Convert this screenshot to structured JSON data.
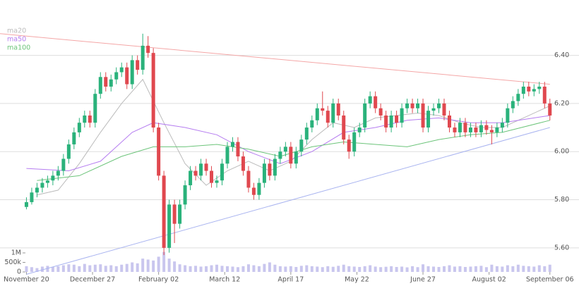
{
  "chart_data": {
    "type": "candlestick",
    "legend": [
      {
        "name": "ma20",
        "color": "#bbbbbb"
      },
      {
        "name": "ma50",
        "color": "#b57cf0"
      },
      {
        "name": "ma100",
        "color": "#6cc47a"
      }
    ],
    "up_color": "#2ab27b",
    "down_color": "#e0484f",
    "volume_color": "#c9c6ee",
    "xlim": [
      -5,
      100.5
    ],
    "xticks": [
      {
        "value": 0,
        "label": "November 20"
      },
      {
        "value": 12.5,
        "label": "December 27"
      },
      {
        "value": 25,
        "label": "February 02"
      },
      {
        "value": 37.5,
        "label": "March 12"
      },
      {
        "value": 50,
        "label": "April 17"
      },
      {
        "value": 62.5,
        "label": "May 22"
      },
      {
        "value": 75,
        "label": "June 27"
      },
      {
        "value": 87.5,
        "label": "August 02"
      },
      {
        "value": 99,
        "label": "September 06"
      }
    ],
    "ylim": [
      5.5,
      6.63
    ],
    "yticks": [
      {
        "value": 5.6,
        "label": "5.60"
      },
      {
        "value": 5.8,
        "label": "5.80"
      },
      {
        "value": 6.0,
        "label": "6.00"
      },
      {
        "value": 6.2,
        "label": "6.20"
      },
      {
        "value": 6.4,
        "label": "6.40"
      }
    ],
    "grid": true,
    "vlim": [
      0,
      1500000
    ],
    "vticks": [
      0,
      {
        "value": 500000,
        "label": "500k"
      },
      {
        "value": 1000000,
        "label": "1M"
      }
    ],
    "candles": [
      [
        5.77,
        5.81,
        5.76,
        5.79
      ],
      [
        5.79,
        5.85,
        5.78,
        5.83
      ],
      [
        5.83,
        5.87,
        5.81,
        5.85
      ],
      [
        5.85,
        5.89,
        5.83,
        5.87
      ],
      [
        5.87,
        5.9,
        5.85,
        5.88
      ],
      [
        5.88,
        5.92,
        5.86,
        5.9
      ],
      [
        5.9,
        5.94,
        5.88,
        5.92
      ],
      [
        5.92,
        5.99,
        5.9,
        5.97
      ],
      [
        5.97,
        6.05,
        5.95,
        6.03
      ],
      [
        6.03,
        6.1,
        6.01,
        6.08
      ],
      [
        6.08,
        6.14,
        6.06,
        6.12
      ],
      [
        6.12,
        6.17,
        6.1,
        6.15
      ],
      [
        6.15,
        6.17,
        6.1,
        6.12
      ],
      [
        6.12,
        6.26,
        6.1,
        6.24
      ],
      [
        6.24,
        6.33,
        6.22,
        6.31
      ],
      [
        6.31,
        6.33,
        6.25,
        6.27
      ],
      [
        6.27,
        6.32,
        6.25,
        6.3
      ],
      [
        6.3,
        6.35,
        6.28,
        6.33
      ],
      [
        6.33,
        6.37,
        6.31,
        6.35
      ],
      [
        6.35,
        6.37,
        6.26,
        6.28
      ],
      [
        6.28,
        6.4,
        6.26,
        6.38
      ],
      [
        6.38,
        6.4,
        6.32,
        6.34
      ],
      [
        6.34,
        6.49,
        6.32,
        6.44
      ],
      [
        6.44,
        6.48,
        6.39,
        6.41
      ],
      [
        6.41,
        6.43,
        6.08,
        6.1
      ],
      [
        6.1,
        6.12,
        5.88,
        5.9
      ],
      [
        5.9,
        5.92,
        5.57,
        5.6
      ],
      [
        5.6,
        5.8,
        5.58,
        5.78
      ],
      [
        5.78,
        5.8,
        5.62,
        5.7
      ],
      [
        5.7,
        5.8,
        5.68,
        5.78
      ],
      [
        5.78,
        5.88,
        5.76,
        5.86
      ],
      [
        5.86,
        5.94,
        5.84,
        5.92
      ],
      [
        5.92,
        5.94,
        5.88,
        5.9
      ],
      [
        5.9,
        5.97,
        5.88,
        5.95
      ],
      [
        5.95,
        5.97,
        5.9,
        5.92
      ],
      [
        5.92,
        5.94,
        5.85,
        5.87
      ],
      [
        5.87,
        5.9,
        5.85,
        5.88
      ],
      [
        5.88,
        5.97,
        5.86,
        5.95
      ],
      [
        5.95,
        6.04,
        5.93,
        6.02
      ],
      [
        6.02,
        6.06,
        6.0,
        6.04
      ],
      [
        6.04,
        6.06,
        5.96,
        5.98
      ],
      [
        5.98,
        6.0,
        5.9,
        5.92
      ],
      [
        5.92,
        5.94,
        5.83,
        5.85
      ],
      [
        5.85,
        5.87,
        5.8,
        5.82
      ],
      [
        5.82,
        5.89,
        5.8,
        5.87
      ],
      [
        5.87,
        5.97,
        5.85,
        5.95
      ],
      [
        5.95,
        5.97,
        5.88,
        5.9
      ],
      [
        5.9,
        5.99,
        5.88,
        5.97
      ],
      [
        5.97,
        6.02,
        5.95,
        6.0
      ],
      [
        6.0,
        6.04,
        5.98,
        6.02
      ],
      [
        6.02,
        6.04,
        5.93,
        5.95
      ],
      [
        5.95,
        6.02,
        5.93,
        6.0
      ],
      [
        6.0,
        6.07,
        5.98,
        6.05
      ],
      [
        6.05,
        6.12,
        6.03,
        6.1
      ],
      [
        6.1,
        6.15,
        6.08,
        6.13
      ],
      [
        6.13,
        6.2,
        6.11,
        6.18
      ],
      [
        6.18,
        6.25,
        6.15,
        6.17
      ],
      [
        6.17,
        6.19,
        6.1,
        6.12
      ],
      [
        6.12,
        6.22,
        6.1,
        6.2
      ],
      [
        6.2,
        6.22,
        6.13,
        6.15
      ],
      [
        6.15,
        6.17,
        6.03,
        6.05
      ],
      [
        6.05,
        6.07,
        5.97,
        6.0
      ],
      [
        6.0,
        6.1,
        5.98,
        6.08
      ],
      [
        6.08,
        6.12,
        6.06,
        6.1
      ],
      [
        6.1,
        6.22,
        6.08,
        6.2
      ],
      [
        6.2,
        6.25,
        6.18,
        6.23
      ],
      [
        6.23,
        6.25,
        6.16,
        6.18
      ],
      [
        6.18,
        6.2,
        6.13,
        6.15
      ],
      [
        6.15,
        6.17,
        6.08,
        6.1
      ],
      [
        6.1,
        6.17,
        6.08,
        6.15
      ],
      [
        6.15,
        6.17,
        6.1,
        6.12
      ],
      [
        6.12,
        6.2,
        6.1,
        6.18
      ],
      [
        6.18,
        6.22,
        6.16,
        6.2
      ],
      [
        6.2,
        6.22,
        6.16,
        6.18
      ],
      [
        6.18,
        6.22,
        6.16,
        6.2
      ],
      [
        6.2,
        6.22,
        6.08,
        6.1
      ],
      [
        6.1,
        6.19,
        6.08,
        6.17
      ],
      [
        6.17,
        6.2,
        6.15,
        6.18
      ],
      [
        6.18,
        6.22,
        6.16,
        6.2
      ],
      [
        6.2,
        6.22,
        6.13,
        6.15
      ],
      [
        6.15,
        6.17,
        6.08,
        6.1
      ],
      [
        6.1,
        6.12,
        6.06,
        6.08
      ],
      [
        6.08,
        6.14,
        6.06,
        6.12
      ],
      [
        6.12,
        6.14,
        6.06,
        6.08
      ],
      [
        6.08,
        6.12,
        6.06,
        6.1
      ],
      [
        6.1,
        6.12,
        6.06,
        6.08
      ],
      [
        6.08,
        6.13,
        6.06,
        6.11
      ],
      [
        6.11,
        6.13,
        6.07,
        6.09
      ],
      [
        6.09,
        6.11,
        6.03,
        6.08
      ],
      [
        6.08,
        6.12,
        6.06,
        6.1
      ],
      [
        6.1,
        6.14,
        6.08,
        6.12
      ],
      [
        6.12,
        6.2,
        6.1,
        6.18
      ],
      [
        6.18,
        6.23,
        6.16,
        6.21
      ],
      [
        6.21,
        6.26,
        6.19,
        6.24
      ],
      [
        6.24,
        6.29,
        6.22,
        6.27
      ],
      [
        6.27,
        6.29,
        6.23,
        6.25
      ],
      [
        6.25,
        6.28,
        6.23,
        6.26
      ],
      [
        6.26,
        6.29,
        6.24,
        6.27
      ],
      [
        6.27,
        6.29,
        6.18,
        6.2
      ],
      [
        6.2,
        6.22,
        6.13,
        6.15
      ]
    ],
    "volume": [
      300000,
      250000,
      200000,
      280000,
      320000,
      260000,
      300000,
      350000,
      400000,
      380000,
      300000,
      420000,
      350000,
      380000,
      400000,
      320000,
      350000,
      300000,
      380000,
      420000,
      500000,
      450000,
      700000,
      650000,
      600000,
      800000,
      1050000,
      700000,
      550000,
      400000,
      350000,
      300000,
      320000,
      280000,
      300000,
      350000,
      380000,
      320000,
      300000,
      280000,
      250000,
      300000,
      400000,
      350000,
      300000,
      420000,
      500000,
      380000,
      300000,
      280000,
      300000,
      260000,
      320000,
      350000,
      300000,
      280000,
      250000,
      300000,
      270000,
      320000,
      380000,
      300000,
      280000,
      260000,
      300000,
      350000,
      280000,
      250000,
      270000,
      300000,
      260000,
      280000,
      240000,
      300000,
      250000,
      400000,
      300000,
      280000,
      260000,
      300000,
      350000,
      280000,
      300000,
      260000,
      280000,
      300000,
      320000,
      250000,
      380000,
      300000,
      280000,
      350000,
      300000,
      380000,
      320000,
      300000,
      280000,
      350000,
      300000,
      380000
    ],
    "series": [
      {
        "name": "ma20",
        "color": "#bbbbbb",
        "x": [
          2,
          6,
          10,
          14,
          18,
          22,
          26,
          30,
          34,
          38,
          42,
          46,
          50,
          54,
          58,
          62,
          66,
          70,
          74,
          78,
          82,
          86,
          90,
          94,
          99
        ],
        "values": [
          5.82,
          5.84,
          5.95,
          6.08,
          6.2,
          6.3,
          6.12,
          5.95,
          5.86,
          5.92,
          5.96,
          5.92,
          5.96,
          6.05,
          6.12,
          6.1,
          6.14,
          6.15,
          6.16,
          6.15,
          6.12,
          6.1,
          6.1,
          6.14,
          6.19
        ]
      },
      {
        "name": "ma50",
        "color": "#b57cf0",
        "x": [
          0,
          8,
          14,
          20,
          24,
          30,
          36,
          42,
          48,
          54,
          60,
          66,
          72,
          78,
          84,
          90,
          99
        ],
        "values": [
          5.93,
          5.92,
          5.96,
          6.08,
          6.12,
          6.1,
          6.07,
          6.0,
          5.95,
          6.0,
          6.08,
          6.1,
          6.13,
          6.14,
          6.12,
          6.12,
          6.15
        ]
      },
      {
        "name": "ma100",
        "color": "#6cc47a",
        "x": [
          2,
          10,
          18,
          24,
          30,
          36,
          42,
          48,
          54,
          60,
          66,
          72,
          78,
          84,
          90,
          99
        ],
        "values": [
          5.88,
          5.9,
          5.98,
          6.02,
          6.02,
          6.03,
          6.01,
          5.98,
          6.02,
          6.04,
          6.03,
          6.02,
          6.05,
          6.07,
          6.08,
          6.13
        ]
      }
    ],
    "trendlines": [
      {
        "color": "#f4a6a6",
        "x": [
          -5,
          99
        ],
        "values": [
          6.49,
          6.28
        ]
      },
      {
        "color": "#a9b4f0",
        "x": [
          0,
          99
        ],
        "values": [
          5.49,
          6.1
        ]
      }
    ]
  }
}
